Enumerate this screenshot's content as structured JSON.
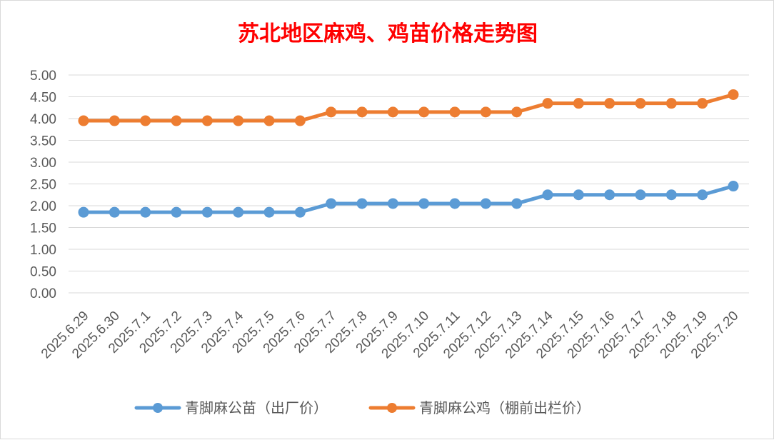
{
  "chart_data": {
    "type": "line",
    "title": "苏北地区麻鸡、鸡苗价格走势图",
    "title_color": "#ff0000",
    "categories": [
      "2025.6.29",
      "2025.6.30",
      "2025.7.1",
      "2025.7.2",
      "2025.7.3",
      "2025.7.4",
      "2025.7.5",
      "2025.7.6",
      "2025.7.7",
      "2025.7.8",
      "2025.7.9",
      "2025.7.10",
      "2025.7.11",
      "2025.7.12",
      "2025.7.13",
      "2025.7.14",
      "2025.7.15",
      "2025.7.16",
      "2025.7.17",
      "2025.7.18",
      "2025.7.19",
      "2025.7.20"
    ],
    "ylim": [
      0,
      5
    ],
    "ytick_labels": [
      "0.00",
      "0.50",
      "1.00",
      "1.50",
      "2.00",
      "2.50",
      "3.00",
      "3.50",
      "4.00",
      "4.50",
      "5.00"
    ],
    "grid": true,
    "legend_position": "bottom",
    "series": [
      {
        "name": "青脚麻公苗（出厂价）",
        "color": "#5b9bd5",
        "values": [
          1.85,
          1.85,
          1.85,
          1.85,
          1.85,
          1.85,
          1.85,
          1.85,
          2.05,
          2.05,
          2.05,
          2.05,
          2.05,
          2.05,
          2.05,
          2.25,
          2.25,
          2.25,
          2.25,
          2.25,
          2.25,
          2.45
        ]
      },
      {
        "name": "青脚麻公鸡（棚前出栏价）",
        "color": "#ed7d31",
        "values": [
          3.95,
          3.95,
          3.95,
          3.95,
          3.95,
          3.95,
          3.95,
          3.95,
          4.15,
          4.15,
          4.15,
          4.15,
          4.15,
          4.15,
          4.15,
          4.35,
          4.35,
          4.35,
          4.35,
          4.35,
          4.35,
          4.55
        ]
      }
    ]
  }
}
